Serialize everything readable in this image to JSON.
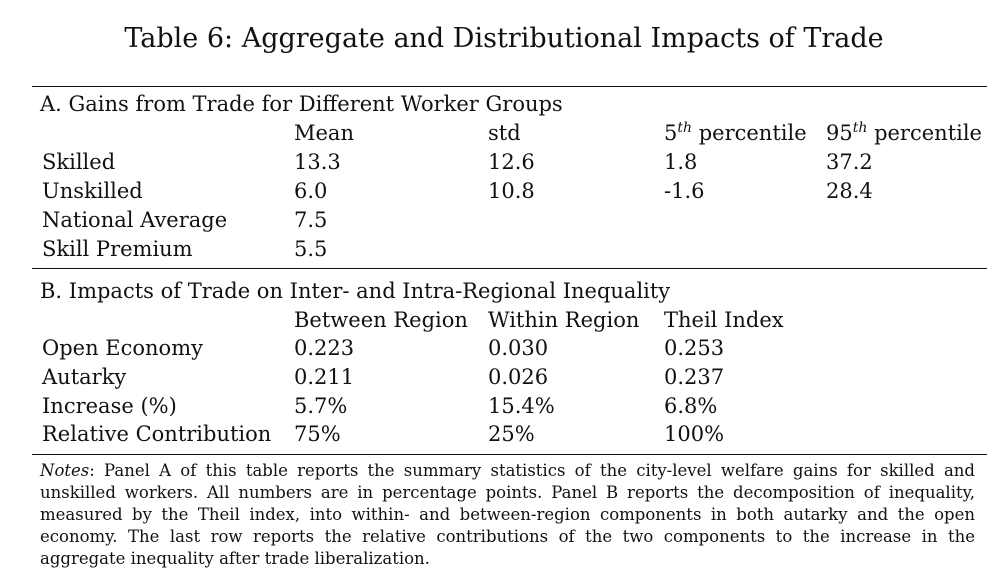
{
  "title": "Table 6: Aggregate and Distributional Impacts of Trade",
  "panel_a": {
    "heading": "A. Gains from Trade for Different Worker Groups",
    "columns": {
      "mean": "Mean",
      "std": "std",
      "p5_num": "5",
      "p5_sup": "th",
      "p5_word": " percentile",
      "p95_num": "95",
      "p95_sup": "th",
      "p95_word": " percentile"
    },
    "rows": [
      {
        "label": "Skilled",
        "mean": "13.3",
        "std": "12.6",
        "p5": "1.8",
        "p95": "37.2"
      },
      {
        "label": "Unskilled",
        "mean": "6.0",
        "std": "10.8",
        "p5": "-1.6",
        "p95": "28.4"
      },
      {
        "label": "National Average",
        "mean": "7.5"
      },
      {
        "label": "Skill Premium",
        "mean": "5.5"
      }
    ]
  },
  "panel_b": {
    "heading": "B. Impacts of Trade on Inter- and Intra-Regional Inequality",
    "columns": {
      "between": "Between Region",
      "within": "Within Region",
      "theil": "Theil Index"
    },
    "rows": [
      {
        "label": "Open Economy",
        "between": "0.223",
        "within": "0.030",
        "theil": "0.253"
      },
      {
        "label": "Autarky",
        "between": "0.211",
        "within": "0.026",
        "theil": "0.237"
      },
      {
        "label": "Increase (%)",
        "between": "5.7%",
        "within": "15.4%",
        "theil": "6.8%"
      },
      {
        "label": "Relative Contribution",
        "between": "75%",
        "within": "25%",
        "theil": "100%"
      }
    ]
  },
  "notes": {
    "label": "Notes",
    "text": ": Panel A of this table reports the summary statistics of the city-level welfare gains for skilled and unskilled workers. All numbers are in percentage points. Panel B reports the decomposition of inequality, measured by the Theil index, into within- and between-region components in both autarky and the open economy.  The last row reports the relative contributions of the two components to the increase in the aggregate inequality after trade liberalization."
  }
}
